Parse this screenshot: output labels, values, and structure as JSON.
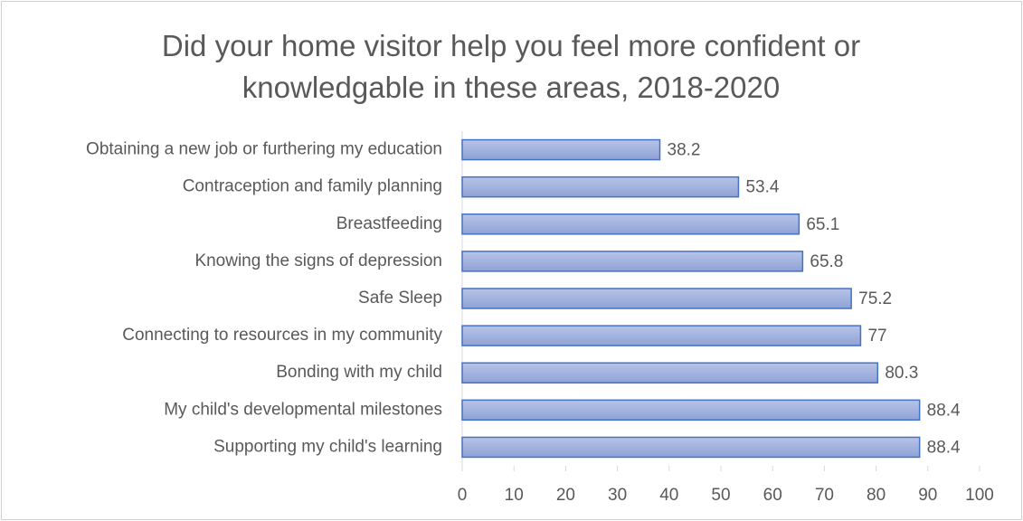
{
  "chart_data": {
    "type": "bar",
    "orientation": "horizontal",
    "title": "Did your home visitor help you feel more confident or knowledgable in these areas, 2018-2020",
    "categories": [
      "Obtaining a new job or furthering my education",
      "Contraception and family planning",
      "Breastfeeding",
      "Knowing the signs of depression",
      "Safe Sleep",
      "Connecting to resources in my community",
      "Bonding with my child",
      "My child's developmental milestones",
      "Supporting my child's learning"
    ],
    "values": [
      38.2,
      53.4,
      65.1,
      65.8,
      75.2,
      77,
      80.3,
      88.4,
      88.4
    ],
    "color": "#9eb0df",
    "xlim": [
      0,
      100
    ],
    "xticks": [
      0,
      10,
      20,
      30,
      40,
      50,
      60,
      70,
      80,
      90,
      100
    ]
  }
}
